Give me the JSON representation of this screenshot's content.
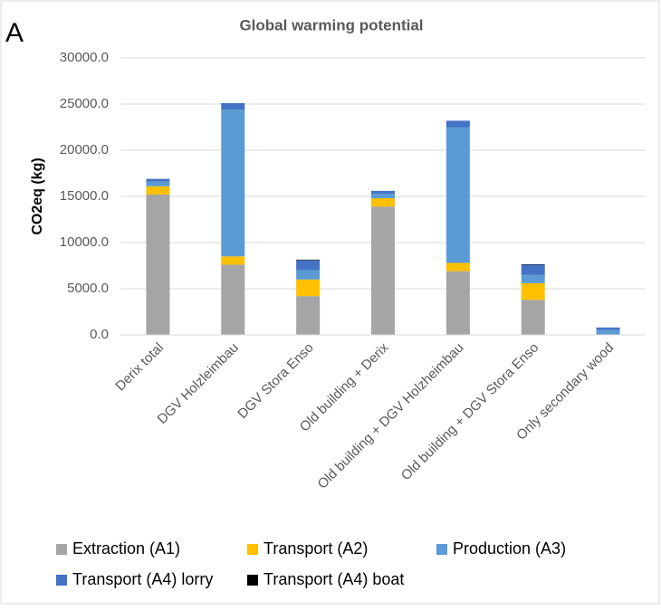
{
  "chart_data": {
    "type": "stacked_bar",
    "panel_label": "A",
    "title": "Global warming potential",
    "y_label": "CO2eq (kg)",
    "categories": [
      "Derix total",
      "DGV Holzleimbau",
      "DGV Stora Enso",
      "Old building + Derix",
      "Old building + DGV Holzheimbau",
      "Old building + DGV Stora Enso",
      "Only secondary wood"
    ],
    "series": [
      {
        "name": "Extraction (A1)",
        "color": "#a5a5a5",
        "values": [
          15200,
          7600,
          4200,
          13900,
          6900,
          3800,
          0
        ]
      },
      {
        "name": "Transport (A2)",
        "color": "#ffc000",
        "values": [
          900,
          900,
          1800,
          900,
          900,
          1800,
          50
        ]
      },
      {
        "name": "Production (A3)",
        "color": "#5b9bd5",
        "values": [
          500,
          15900,
          1000,
          500,
          14700,
          900,
          500
        ]
      },
      {
        "name": "Transport (A4) lorry",
        "color": "#4472c4",
        "values": [
          300,
          700,
          1100,
          300,
          700,
          1100,
          250
        ]
      },
      {
        "name": "Transport (A4) boat",
        "color": "#000000",
        "values": [
          0,
          0,
          50,
          0,
          0,
          50,
          0
        ]
      }
    ],
    "ylim": [
      0,
      30000
    ],
    "yticks": [
      {
        "value": 0,
        "label": "0.0"
      },
      {
        "value": 5000,
        "label": "5000.0"
      },
      {
        "value": 10000,
        "label": "10000.0"
      },
      {
        "value": 15000,
        "label": "15000.0"
      },
      {
        "value": 20000,
        "label": "20000.0"
      },
      {
        "value": 25000,
        "label": "25000.0"
      },
      {
        "value": 30000,
        "label": "30000.0"
      }
    ],
    "grid": true,
    "legend": "bottom"
  }
}
